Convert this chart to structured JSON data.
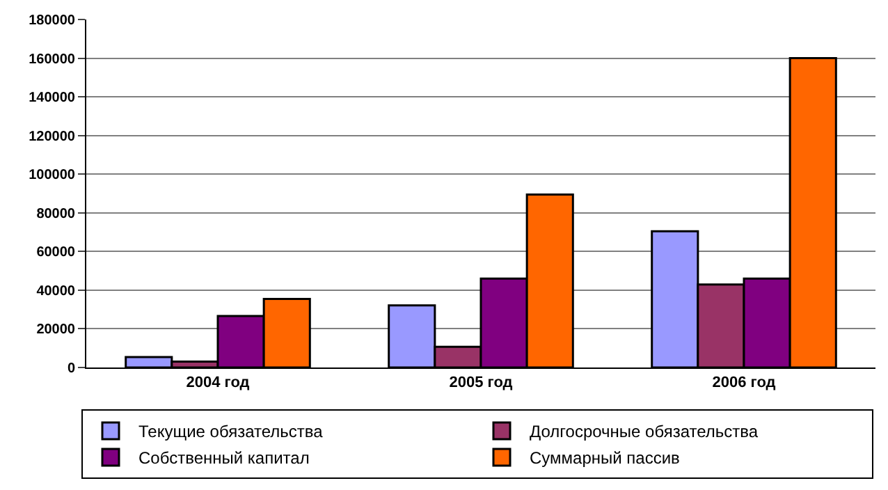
{
  "chart_data": {
    "type": "bar",
    "categories": [
      "2004 год",
      "2005 год",
      "2006 год"
    ],
    "series": [
      {
        "name": "Текущие обязательства",
        "color": "#9999ff",
        "values": [
          5400,
          32100,
          70500
        ]
      },
      {
        "name": "Долгосрочные обязательства",
        "color": "#993366",
        "values": [
          3100,
          10700,
          42900
        ]
      },
      {
        "name": "Собственный капитал",
        "color": "#800080",
        "values": [
          26600,
          46000,
          46000
        ]
      },
      {
        "name": "Суммарный пассив",
        "color": "#ff6600",
        "values": [
          35500,
          89500,
          160000
        ]
      }
    ],
    "ylim": [
      0,
      180000
    ],
    "yticks": [
      0,
      20000,
      40000,
      60000,
      80000,
      100000,
      120000,
      140000,
      160000,
      180000
    ],
    "grid": "y",
    "legend": "bottom"
  }
}
